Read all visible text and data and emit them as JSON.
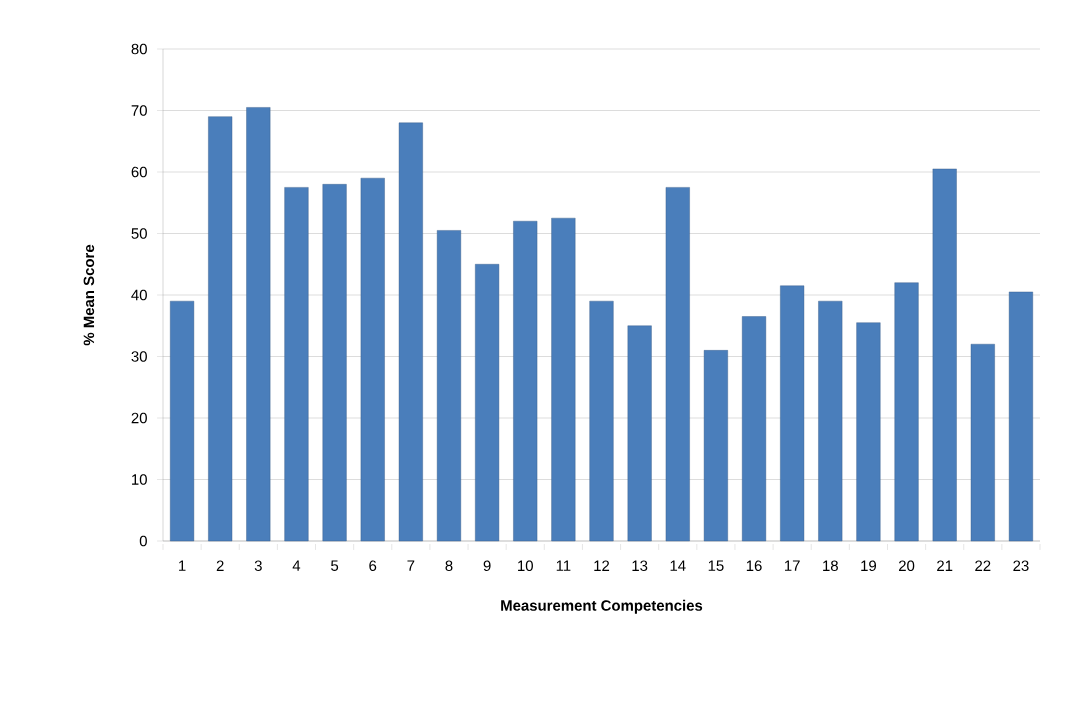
{
  "chart_data": {
    "type": "bar",
    "xlabel": "Measurement Competencies",
    "ylabel": "% Mean Score",
    "categories": [
      "1",
      "2",
      "3",
      "4",
      "5",
      "6",
      "7",
      "8",
      "9",
      "10",
      "11",
      "12",
      "13",
      "14",
      "15",
      "16",
      "17",
      "18",
      "19",
      "20",
      "21",
      "22",
      "23"
    ],
    "values": [
      39,
      69,
      70.5,
      57.5,
      58,
      59,
      68,
      50.5,
      45,
      52,
      52.5,
      39,
      35,
      57.5,
      31,
      36.5,
      41.5,
      39,
      35.5,
      42,
      60.5,
      32,
      40.5
    ],
    "color": "#4a7ebb",
    "ylim": [
      0,
      80
    ],
    "yticks": [
      0,
      10,
      20,
      30,
      40,
      50,
      60,
      70,
      80
    ],
    "grid": "y"
  }
}
